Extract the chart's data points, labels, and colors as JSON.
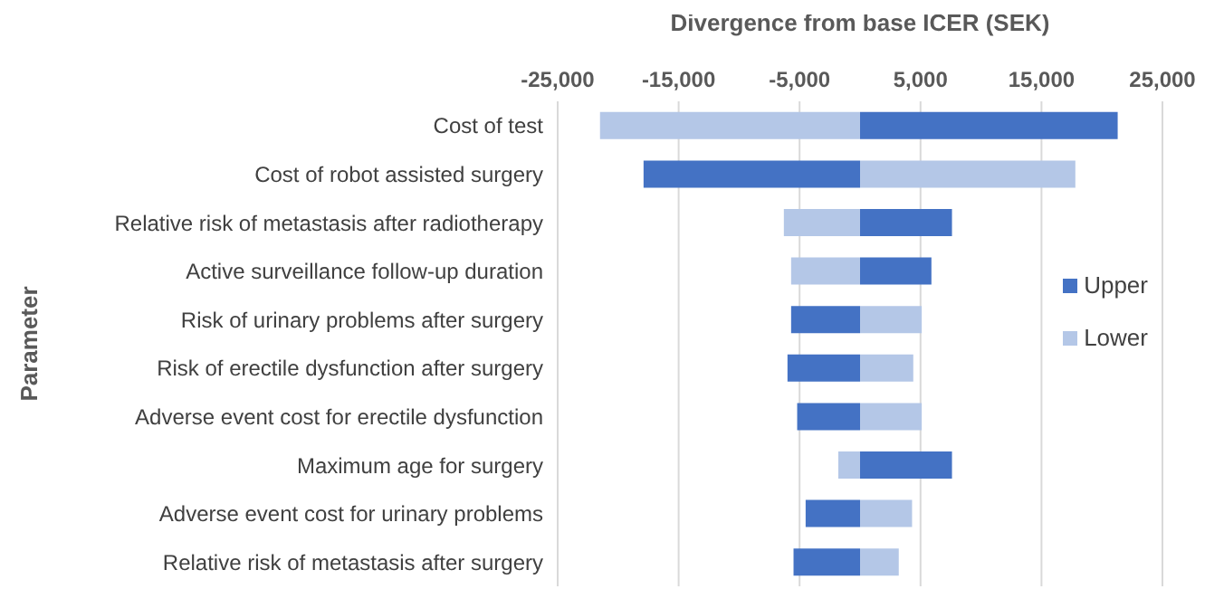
{
  "chart_data": {
    "type": "bar",
    "orientation": "horizontal",
    "stacked": true,
    "xlabel": "Divergence from base ICER (SEK)",
    "ylabel": "Parameter",
    "categories": [
      "Cost of test",
      "Cost of robot assisted surgery",
      "Relative risk of metastasis after radiotherapy",
      "Active surveillance follow-up duration",
      "Risk of urinary problems after surgery",
      "Risk of erectile dysfunction after surgery",
      "Adverse event cost for erectile dysfunction",
      "Maximum age for surgery",
      "Adverse event cost for urinary problems",
      "Relative risk of metastasis after surgery"
    ],
    "series": [
      {
        "name": "Upper",
        "color": "#4472c4",
        "values": [
          21300,
          -17900,
          7600,
          5900,
          -5700,
          -6000,
          -5200,
          7600,
          -4500,
          -5500
        ]
      },
      {
        "name": "Lower",
        "color": "#b4c7e7",
        "values": [
          -21500,
          17800,
          -6300,
          -5700,
          5100,
          4400,
          5100,
          -1800,
          4300,
          3200
        ]
      }
    ],
    "xlim": [
      -25000,
      25000
    ],
    "xticks": [
      {
        "value": -25000,
        "label": "-25,000"
      },
      {
        "value": -15000,
        "label": "-15,000"
      },
      {
        "value": -5000,
        "label": "-5,000"
      },
      {
        "value": 5000,
        "label": "5,000"
      },
      {
        "value": 15000,
        "label": "15,000"
      },
      {
        "value": 25000,
        "label": "25,000"
      }
    ],
    "grid": "x",
    "legend": "right"
  }
}
